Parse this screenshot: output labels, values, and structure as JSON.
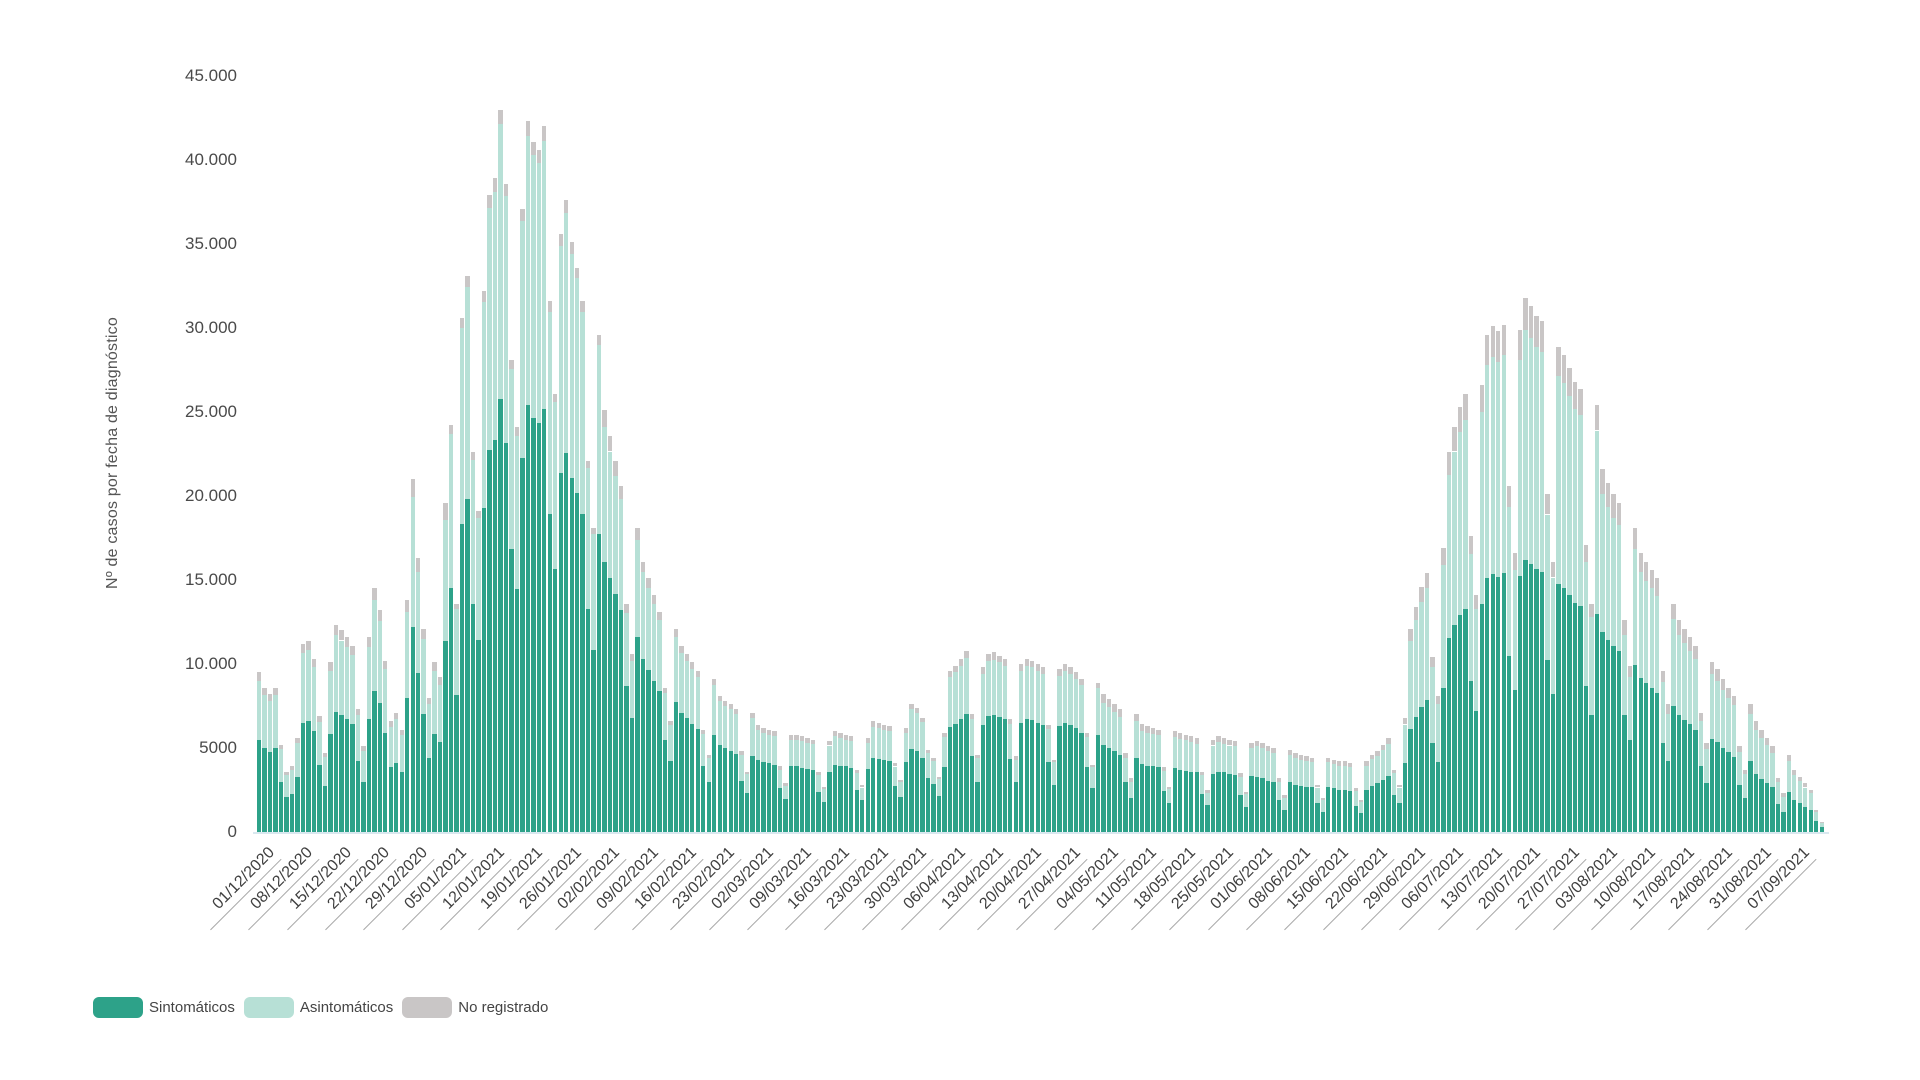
{
  "chart_data": {
    "type": "bar",
    "stacked": true,
    "title": "",
    "xlabel": "",
    "ylabel": "Nº de casos por fecha de diagnóstico",
    "ylim": [
      0,
      45000
    ],
    "grid": false,
    "legend_position": "bottom-left",
    "y_ticks": [
      0,
      5000,
      10000,
      15000,
      20000,
      25000,
      30000,
      35000,
      40000,
      45000
    ],
    "y_tick_labels": [
      "0",
      "5000",
      "10.000",
      "15.000",
      "20.000",
      "25.000",
      "30.000",
      "35.000",
      "40.000",
      "45.000"
    ],
    "x_start_date": "01/12/2020",
    "x_tick_every_days": 7,
    "x_tick_labels": [
      "01/12/2020",
      "08/12/2020",
      "15/12/2020",
      "22/12/2020",
      "29/12/2020",
      "05/01/2021",
      "12/01/2021",
      "19/01/2021",
      "26/01/2021",
      "02/02/2021",
      "09/02/2021",
      "16/02/2021",
      "23/02/2021",
      "02/03/2021",
      "09/03/2021",
      "16/03/2021",
      "23/03/2021",
      "30/03/2021",
      "06/04/2021",
      "13/04/2021",
      "20/04/2021",
      "27/04/2021",
      "04/05/2021",
      "11/05/2021",
      "18/05/2021",
      "25/05/2021",
      "01/06/2021",
      "08/06/2021",
      "15/06/2021",
      "22/06/2021",
      "29/06/2021",
      "06/07/2021",
      "13/07/2021",
      "20/07/2021",
      "27/07/2021",
      "03/08/2021",
      "10/08/2021",
      "17/08/2021",
      "24/08/2021",
      "31/08/2021",
      "07/09/2021"
    ],
    "series": [
      {
        "name": "Sintomáticos",
        "color": "#2da289",
        "values": [
          5500,
          5000,
          4750,
          5000,
          3000,
          2100,
          2250,
          3250,
          6500,
          6600,
          6000,
          4000,
          2750,
          5850,
          7150,
          6950,
          6750,
          6450,
          4250,
          2950,
          6750,
          8400,
          7650,
          5900,
          3850,
          4100,
          3550,
          8000,
          12200,
          9450,
          7000,
          4400,
          5850,
          5350,
          11350,
          14500,
          8150,
          18350,
          19850,
          13550,
          11450,
          19300,
          22750,
          23350,
          25800,
          23150,
          16850,
          14450,
          22250,
          25400,
          24650,
          24350,
          25200,
          18950,
          15650,
          21350,
          22550,
          21050,
          20150,
          18950,
          13250,
          10850,
          17750,
          16050,
          15100,
          14150,
          13200,
          8700,
          6800,
          11600,
          10300,
          9650,
          9000,
          8400,
          5500,
          4200,
          7750,
          7100,
          6800,
          6450,
          6150,
          3900,
          2950,
          5800,
          5200,
          5000,
          4850,
          4650,
          3050,
          2300,
          4550,
          4300,
          4150,
          4100,
          4000,
          2600,
          1950,
          3900,
          3900,
          3800,
          3750,
          3700,
          2400,
          1800,
          3600,
          4000,
          3950,
          3900,
          3800,
          2500,
          1900,
          3750,
          4400,
          4350,
          4300,
          4200,
          2750,
          2100,
          4150,
          4950,
          4800,
          4400,
          3200,
          2850,
          2150,
          3850,
          6250,
          6450,
          6700,
          7000,
          4550,
          3000,
          6350,
          6900,
          6950,
          6850,
          6700,
          4350,
          2950,
          6500,
          6700,
          6650,
          6500,
          6350,
          4150,
          2800,
          6300,
          6500,
          6350,
          6200,
          5900,
          3850,
          2600,
          5800,
          5150,
          5000,
          4800,
          4600,
          2950,
          2000,
          4400,
          4050,
          3950,
          3900,
          3850,
          2450,
          1700,
          3800,
          3700,
          3650,
          3600,
          3550,
          2250,
          1600,
          3450,
          3600,
          3550,
          3450,
          3400,
          2200,
          1500,
          3350,
          3250,
          3200,
          3050,
          3000,
          1900,
          1300,
          2950,
          2800,
          2750,
          2700,
          2650,
          1700,
          1200,
          2650,
          2600,
          2500,
          2500,
          2450,
          1550,
          1150,
          2500,
          2750,
          2900,
          3100,
          3350,
          2200,
          1700,
          4100,
          6150,
          6850,
          7450,
          7850,
          5300,
          4150,
          8600,
          11550,
          12300,
          12900,
          13300,
          9000,
          7200,
          13550,
          15100,
          15350,
          15200,
          15400,
          10500,
          8450,
          15250,
          16200,
          15950,
          15650,
          15500,
          10250,
          8200,
          14750,
          14500,
          14100,
          13650,
          13450,
          8700,
          6950,
          12950,
          11900,
          11450,
          11050,
          10800,
          6950,
          5450,
          9950,
          9150,
          8850,
          8600,
          8300,
          5300,
          4200,
          7500,
          6950,
          6650,
          6400,
          6100,
          3900,
          2900,
          5550,
          5350,
          5000,
          4750,
          4450,
          2800,
          2050,
          4200,
          3450,
          3150,
          2900,
          2650,
          1650,
          1200,
          2400,
          1900,
          1700,
          1500,
          1300,
          650,
          300
        ]
      },
      {
        "name": "Asintomáticos",
        "color": "#b7e0d6",
        "values": [
          3500,
          3150,
          3050,
          3150,
          1950,
          1300,
          1450,
          2050,
          4150,
          4250,
          3800,
          2550,
          1700,
          3750,
          4550,
          4450,
          4250,
          4100,
          2700,
          1900,
          4250,
          5400,
          4900,
          3800,
          2400,
          2650,
          2250,
          5100,
          7750,
          6050,
          4500,
          3200,
          3750,
          3400,
          7250,
          9200,
          5150,
          11650,
          12600,
          8600,
          7250,
          12250,
          14400,
          14750,
          16350,
          14700,
          10700,
          9150,
          14100,
          16050,
          15650,
          15450,
          15950,
          12000,
          9950,
          13550,
          14300,
          13350,
          12800,
          12000,
          8400,
          6900,
          11250,
          8050,
          7550,
          7050,
          6600,
          4350,
          3400,
          5800,
          5150,
          4850,
          4550,
          4200,
          2750,
          2150,
          3850,
          3550,
          3400,
          3250,
          3050,
          1950,
          1450,
          2950,
          2600,
          2500,
          2450,
          2350,
          1550,
          1150,
          2250,
          1800,
          1750,
          1700,
          1700,
          1100,
          800,
          1600,
          1600,
          1600,
          1550,
          1550,
          1000,
          750,
          1550,
          1700,
          1650,
          1600,
          1600,
          1000,
          750,
          1550,
          1850,
          1850,
          1800,
          1800,
          1150,
          850,
          1750,
          2350,
          2300,
          2150,
          1500,
          1350,
          1000,
          1800,
          2950,
          3050,
          3200,
          3350,
          2150,
          1400,
          3050,
          3300,
          3300,
          3250,
          3200,
          2100,
          1350,
          3100,
          3200,
          3150,
          3100,
          3050,
          2000,
          1350,
          3000,
          3100,
          3050,
          2900,
          2850,
          1800,
          1250,
          2750,
          2550,
          2450,
          2350,
          2250,
          1450,
          1000,
          2200,
          1950,
          1950,
          1950,
          1900,
          1200,
          850,
          1850,
          1850,
          1800,
          1750,
          1700,
          1150,
          750,
          1700,
          1750,
          1700,
          1700,
          1700,
          1100,
          750,
          1650,
          1850,
          1800,
          1750,
          1700,
          1100,
          750,
          1650,
          1600,
          1550,
          1550,
          1500,
          950,
          700,
          1500,
          1450,
          1450,
          1450,
          1400,
          900,
          650,
          1450,
          1600,
          1600,
          1800,
          1900,
          1300,
          950,
          2300,
          5200,
          5750,
          6250,
          6650,
          4500,
          3450,
          7300,
          9700,
          10350,
          10900,
          11250,
          7550,
          6050,
          11450,
          12700,
          12950,
          12800,
          13000,
          8850,
          7150,
          12850,
          13700,
          13450,
          13200,
          13100,
          8650,
          6950,
          12400,
          12200,
          11850,
          11550,
          11350,
          7350,
          5850,
          10950,
          8200,
          7900,
          7650,
          7450,
          4750,
          3750,
          6900,
          6300,
          6100,
          5900,
          5750,
          3650,
          2850,
          5150,
          4750,
          4600,
          4400,
          4200,
          2700,
          2050,
          3850,
          3650,
          3450,
          3250,
          3100,
          1950,
          1400,
          2850,
          2600,
          2450,
          2250,
          2050,
          1300,
          900,
          1850,
          1500,
          1350,
          1150,
          1000,
          550,
          250
        ]
      },
      {
        "name": "No registrado",
        "color": "#c9c6c6",
        "values": [
          500,
          450,
          400,
          450,
          250,
          200,
          200,
          300,
          550,
          550,
          500,
          350,
          250,
          500,
          600,
          600,
          600,
          550,
          350,
          250,
          600,
          700,
          650,
          500,
          350,
          350,
          300,
          700,
          1050,
          800,
          600,
          400,
          500,
          450,
          1000,
          500,
          300,
          600,
          650,
          450,
          400,
          650,
          750,
          800,
          850,
          750,
          550,
          500,
          750,
          850,
          800,
          800,
          850,
          650,
          500,
          700,
          750,
          700,
          650,
          650,
          450,
          350,
          600,
          1000,
          950,
          900,
          800,
          550,
          400,
          700,
          650,
          600,
          550,
          500,
          350,
          250,
          500,
          450,
          400,
          400,
          400,
          250,
          200,
          350,
          300,
          300,
          300,
          300,
          200,
          150,
          300,
          300,
          300,
          300,
          300,
          200,
          150,
          300,
          300,
          300,
          300,
          250,
          200,
          150,
          250,
          300,
          300,
          300,
          300,
          200,
          150,
          300,
          350,
          300,
          300,
          300,
          200,
          150,
          300,
          300,
          300,
          250,
          200,
          200,
          150,
          250,
          400,
          400,
          400,
          450,
          300,
          200,
          400,
          400,
          450,
          400,
          400,
          250,
          200,
          400,
          400,
          400,
          400,
          400,
          250,
          150,
          400,
          400,
          400,
          400,
          350,
          250,
          150,
          350,
          500,
          450,
          450,
          450,
          300,
          200,
          400,
          400,
          400,
          350,
          350,
          250,
          150,
          350,
          350,
          350,
          350,
          350,
          200,
          150,
          350,
          350,
          350,
          350,
          300,
          200,
          150,
          300,
          300,
          300,
          300,
          300,
          200,
          150,
          300,
          300,
          300,
          250,
          250,
          150,
          100,
          250,
          250,
          250,
          250,
          250,
          150,
          100,
          250,
          250,
          300,
          300,
          350,
          200,
          150,
          400,
          750,
          800,
          900,
          900,
          600,
          500,
          1000,
          1350,
          1450,
          1500,
          1550,
          1050,
          850,
          1600,
          1800,
          1800,
          1800,
          1800,
          1250,
          1000,
          1800,
          1900,
          1900,
          1850,
          1800,
          1200,
          950,
          1750,
          1700,
          1650,
          1600,
          1600,
          1050,
          800,
          1500,
          1500,
          1450,
          1400,
          1350,
          900,
          700,
          1250,
          1150,
          1150,
          1100,
          1050,
          650,
          550,
          950,
          900,
          850,
          800,
          800,
          500,
          350,
          700,
          700,
          650,
          600,
          550,
          350,
          250,
          550,
          550,
          500,
          450,
          400,
          250,
          200,
          350,
          300,
          250,
          250,
          200,
          100,
          50
        ]
      }
    ]
  }
}
